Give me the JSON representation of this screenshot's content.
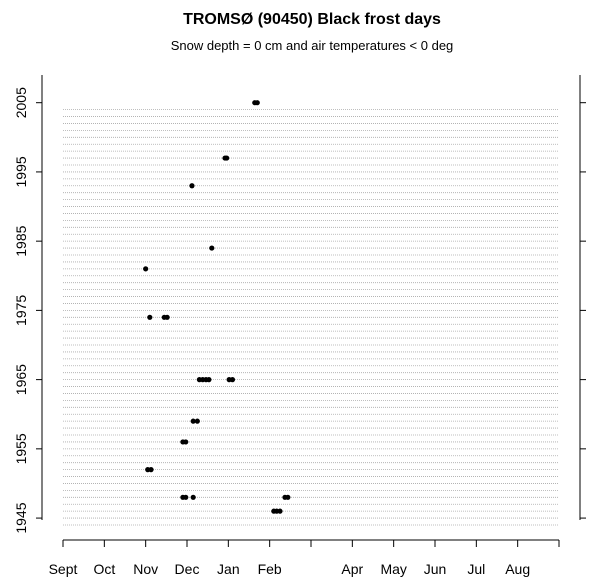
{
  "chart_data": {
    "type": "scatter",
    "title": "TROMSØ (90450) Black frost days",
    "subtitle": "Snow depth = 0 cm and air temperatures < 0 deg",
    "x": [
      4.64,
      4.7,
      3.92,
      3.96,
      3.12,
      3.6,
      2.0,
      2.1,
      2.45,
      2.52,
      3.3,
      3.38,
      3.46,
      3.53,
      4.02,
      4.1,
      3.15,
      3.25,
      2.9,
      2.97,
      2.05,
      2.13,
      2.9,
      2.97,
      3.15,
      5.37,
      5.44,
      5.1,
      5.17,
      5.25
    ],
    "y": [
      2005,
      2005,
      1997,
      1997,
      1993,
      1984,
      1981,
      1974,
      1974,
      1974,
      1965,
      1965,
      1965,
      1965,
      1965,
      1965,
      1959,
      1959,
      1956,
      1956,
      1952,
      1952,
      1948,
      1948,
      1948,
      1948,
      1948,
      1946,
      1946,
      1946
    ],
    "color": "#000000",
    "xlim": [
      0,
      12
    ],
    "ylim": [
      1944,
      2009
    ],
    "xticks": [
      {
        "value": 0,
        "label": "Sept"
      },
      {
        "value": 1,
        "label": "Oct"
      },
      {
        "value": 2,
        "label": "Nov"
      },
      {
        "value": 3,
        "label": "Dec"
      },
      {
        "value": 4,
        "label": "Jan"
      },
      {
        "value": 5,
        "label": "Feb"
      },
      {
        "value": 6,
        "label": null
      },
      {
        "value": 7,
        "label": "Apr"
      },
      {
        "value": 8,
        "label": "May"
      },
      {
        "value": 9,
        "label": "Jun"
      },
      {
        "value": 10,
        "label": "Jul"
      },
      {
        "value": 11,
        "label": "Aug"
      },
      {
        "value": 12,
        "label": null
      }
    ],
    "yticks": [
      1945,
      1955,
      1965,
      1975,
      1985,
      1995,
      2005
    ],
    "grid": true
  }
}
